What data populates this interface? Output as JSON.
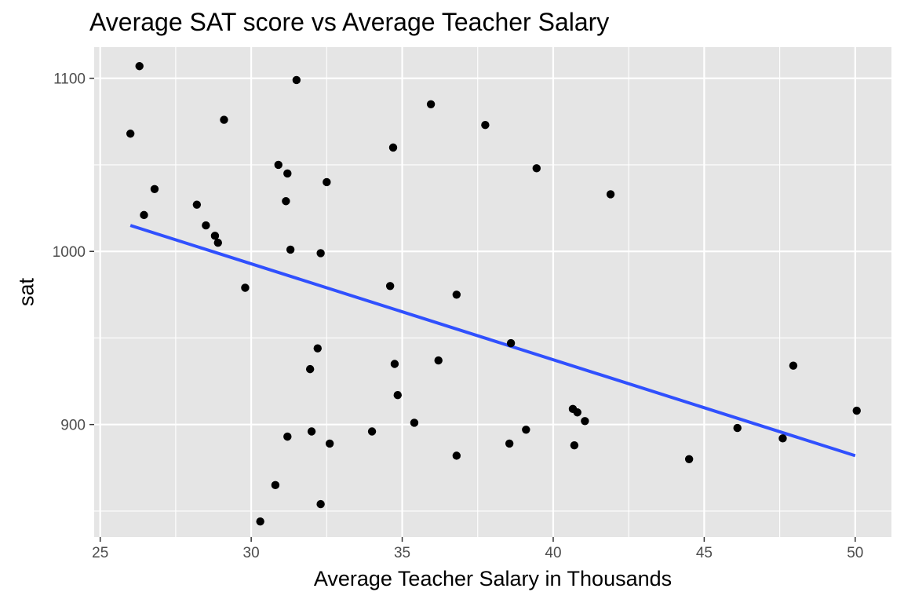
{
  "chart_data": {
    "type": "scatter",
    "title": "Average SAT score vs Average Teacher Salary",
    "xlabel": "Average Teacher Salary in Thousands",
    "ylabel": "sat",
    "xlim": [
      24.8,
      51.2
    ],
    "ylim": [
      835,
      1118
    ],
    "x_ticks": [
      25,
      30,
      35,
      40,
      45,
      50
    ],
    "y_ticks": [
      900,
      1000,
      1100
    ],
    "x_tick_labels": [
      "25",
      "30",
      "35",
      "40",
      "45",
      "50"
    ],
    "y_tick_labels": [
      "900",
      "1000",
      "1100"
    ],
    "grid": true,
    "points": [
      {
        "x": 26.0,
        "y": 1068
      },
      {
        "x": 26.3,
        "y": 1107
      },
      {
        "x": 26.45,
        "y": 1021
      },
      {
        "x": 26.8,
        "y": 1036
      },
      {
        "x": 28.2,
        "y": 1027
      },
      {
        "x": 28.5,
        "y": 1015
      },
      {
        "x": 28.8,
        "y": 1009
      },
      {
        "x": 28.9,
        "y": 1005
      },
      {
        "x": 29.1,
        "y": 1076
      },
      {
        "x": 29.8,
        "y": 979
      },
      {
        "x": 30.3,
        "y": 844
      },
      {
        "x": 30.8,
        "y": 865
      },
      {
        "x": 30.9,
        "y": 1050
      },
      {
        "x": 31.15,
        "y": 1029
      },
      {
        "x": 31.2,
        "y": 1045
      },
      {
        "x": 31.2,
        "y": 893
      },
      {
        "x": 31.3,
        "y": 1001
      },
      {
        "x": 31.5,
        "y": 1099
      },
      {
        "x": 31.95,
        "y": 932
      },
      {
        "x": 32.0,
        "y": 896
      },
      {
        "x": 32.2,
        "y": 944
      },
      {
        "x": 32.3,
        "y": 999
      },
      {
        "x": 32.3,
        "y": 854
      },
      {
        "x": 32.5,
        "y": 1040
      },
      {
        "x": 32.6,
        "y": 889
      },
      {
        "x": 34.0,
        "y": 896
      },
      {
        "x": 34.6,
        "y": 980
      },
      {
        "x": 34.7,
        "y": 1060
      },
      {
        "x": 34.75,
        "y": 935
      },
      {
        "x": 34.85,
        "y": 917
      },
      {
        "x": 35.4,
        "y": 901
      },
      {
        "x": 35.95,
        "y": 1085
      },
      {
        "x": 36.2,
        "y": 937
      },
      {
        "x": 36.8,
        "y": 975
      },
      {
        "x": 36.8,
        "y": 882
      },
      {
        "x": 37.75,
        "y": 1073
      },
      {
        "x": 38.55,
        "y": 889
      },
      {
        "x": 38.6,
        "y": 947
      },
      {
        "x": 39.1,
        "y": 897
      },
      {
        "x": 39.45,
        "y": 1048
      },
      {
        "x": 40.65,
        "y": 909
      },
      {
        "x": 40.7,
        "y": 888
      },
      {
        "x": 40.8,
        "y": 907
      },
      {
        "x": 41.05,
        "y": 902
      },
      {
        "x": 41.9,
        "y": 1033
      },
      {
        "x": 44.5,
        "y": 880
      },
      {
        "x": 46.1,
        "y": 898
      },
      {
        "x": 47.6,
        "y": 892
      },
      {
        "x": 47.95,
        "y": 934
      },
      {
        "x": 50.05,
        "y": 908
      }
    ],
    "fit_line": {
      "x": [
        26.0,
        50.0
      ],
      "y": [
        1015,
        882
      ]
    },
    "colors": {
      "panel_bg": "#e5e5e5",
      "grid": "#ffffff",
      "point": "#000000",
      "fit_line": "#3050fe",
      "tick_text": "#4d4d4d",
      "tick_mark": "#333333"
    }
  }
}
